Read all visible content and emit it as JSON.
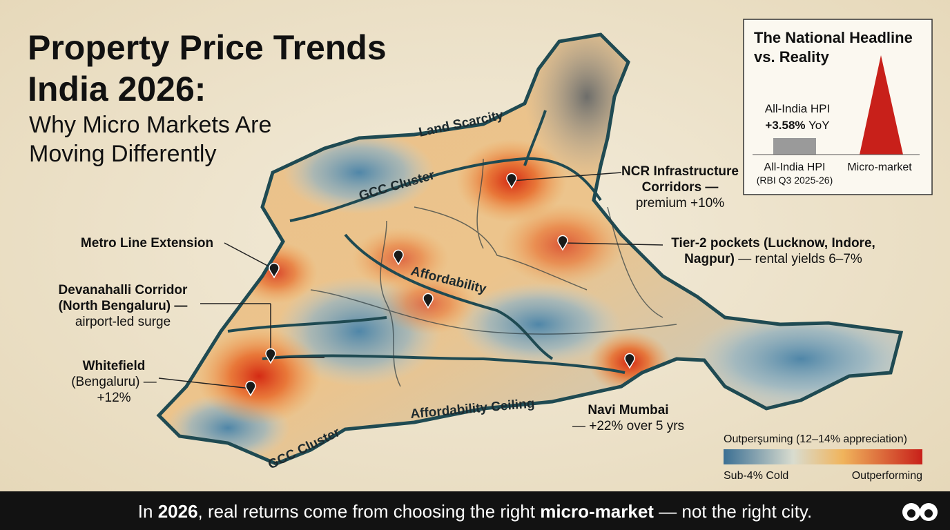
{
  "title": {
    "lines": [
      "Property Price Trends",
      "India 2026:"
    ]
  },
  "subtitle": {
    "lines": [
      "Why Micro Markets Are",
      "Moving Differently"
    ]
  },
  "map_labels": [
    "Land Scarcity",
    "GCC Cluster",
    "Affordability",
    "Affordability Ceiling",
    "GCC Cluster"
  ],
  "callouts": [
    {
      "lines": [
        {
          "bold": "NCR Infrastructure"
        },
        {
          "bold": "Corridors —"
        },
        {
          "text": "premium +10%"
        }
      ]
    },
    {
      "lines": [
        {
          "bold": "Tier-2 pockets (Lucknow, Indore,"
        },
        {
          "bold": "Nagpur)",
          "text": " — rental yields 6–7%"
        }
      ]
    },
    {
      "lines": [
        {
          "bold": "Metro Line Extension"
        }
      ]
    },
    {
      "lines": [
        {
          "bold": "Devanahalli Corridor"
        },
        {
          "bold": "(North Bengaluru) —"
        },
        {
          "text": "airport-led surge"
        }
      ]
    },
    {
      "lines": [
        {
          "bold": "Whitefield"
        },
        {
          "text": "(Bengaluru) —"
        },
        {
          "text": "+12%"
        }
      ]
    },
    {
      "lines": [
        {
          "bold": "Navi Mumbai"
        },
        {
          "text": "— +22% over 5 yrs"
        }
      ]
    }
  ],
  "inset": {
    "title": [
      "The National Headline",
      "vs. Reality"
    ],
    "annotation": {
      "label": "All-India HPI",
      "bold": "+3.58%",
      "text": " YoY"
    },
    "categories": [
      {
        "label": "All-India HPI",
        "note": "(RBI Q3 2025-26)"
      },
      {
        "label": "Micro-market"
      }
    ]
  },
  "legend": {
    "title": "Outperşuming (12–14% appreciation)",
    "low": "Sub-4% Cold",
    "high": "Outperforming"
  },
  "footer": {
    "parts": [
      "In ",
      "2026",
      ", real returns come from choosing the right ",
      "micro-market",
      " — not the right city."
    ]
  }
}
